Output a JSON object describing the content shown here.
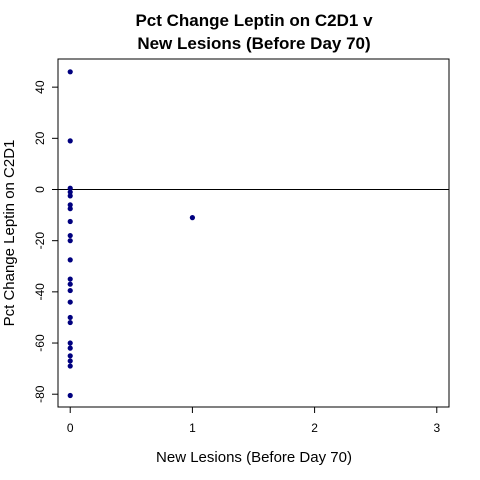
{
  "chart_data": {
    "type": "scatter",
    "title_lines": [
      "Pct Change Leptin on C2D1 v",
      "New Lesions (Before Day 70)"
    ],
    "xlabel": "New Lesions (Before Day 70)",
    "ylabel": "Pct Change Leptin on C2D1",
    "xlim": [
      -0.1,
      3.1
    ],
    "ylim": [
      -85,
      51
    ],
    "x_ticks": [
      0,
      1,
      2,
      3
    ],
    "y_ticks": [
      -80,
      -60,
      -40,
      -20,
      0,
      20,
      40
    ],
    "reference_line_y": 0,
    "grid": false,
    "legend": "none",
    "point_color": "#00007f",
    "points": [
      {
        "x": 0,
        "y": 46
      },
      {
        "x": 0,
        "y": 19
      },
      {
        "x": 0,
        "y": 0.5
      },
      {
        "x": 0,
        "y": -1
      },
      {
        "x": 0,
        "y": -2.5
      },
      {
        "x": 0,
        "y": -6
      },
      {
        "x": 0,
        "y": -7.5
      },
      {
        "x": 0,
        "y": -12.5
      },
      {
        "x": 0,
        "y": -18
      },
      {
        "x": 0,
        "y": -20
      },
      {
        "x": 0,
        "y": -27.5
      },
      {
        "x": 0,
        "y": -35
      },
      {
        "x": 0,
        "y": -37
      },
      {
        "x": 0,
        "y": -39.5
      },
      {
        "x": 0,
        "y": -44
      },
      {
        "x": 0,
        "y": -50
      },
      {
        "x": 0,
        "y": -52
      },
      {
        "x": 0,
        "y": -60
      },
      {
        "x": 0,
        "y": -62
      },
      {
        "x": 0,
        "y": -65
      },
      {
        "x": 0,
        "y": -67
      },
      {
        "x": 0,
        "y": -69
      },
      {
        "x": 0,
        "y": -80.5
      },
      {
        "x": 1,
        "y": -11
      }
    ]
  }
}
